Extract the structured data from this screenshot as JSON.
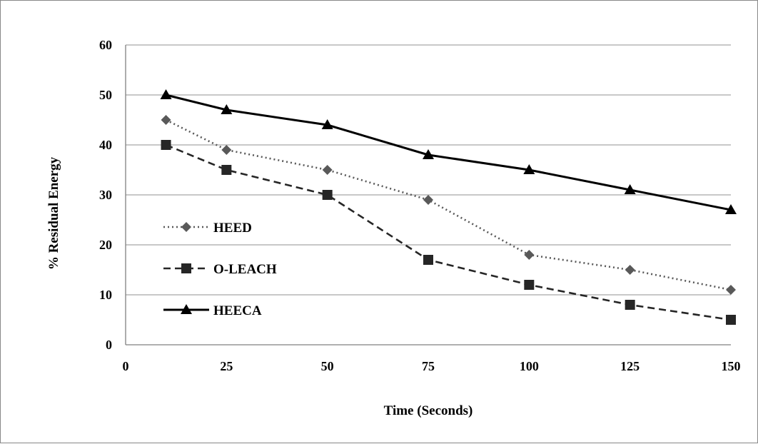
{
  "chart_data": {
    "type": "line",
    "title": "",
    "xlabel": "Time (Seconds)",
    "ylabel": "% Residual Energy",
    "x_ticks": [
      0,
      25,
      50,
      75,
      100,
      125,
      150
    ],
    "y_ticks": [
      0,
      10,
      20,
      30,
      40,
      50,
      60
    ],
    "xlim": [
      0,
      150
    ],
    "ylim": [
      0,
      60
    ],
    "grid": "horizontal",
    "legend_position": "left-middle",
    "x": [
      10,
      25,
      50,
      75,
      100,
      125,
      150
    ],
    "series": [
      {
        "name": "HEED",
        "values": [
          45,
          39,
          35,
          29,
          18,
          15,
          11
        ],
        "color": "#595959",
        "line_style": "dotted",
        "marker": "diamond"
      },
      {
        "name": "O-LEACH",
        "values": [
          40,
          35,
          30,
          17,
          12,
          8,
          5
        ],
        "color": "#262626",
        "line_style": "dashed",
        "marker": "square"
      },
      {
        "name": "HEECA",
        "values": [
          50,
          47,
          44,
          38,
          35,
          31,
          27
        ],
        "color": "#000000",
        "line_style": "solid",
        "marker": "triangle"
      }
    ]
  },
  "colors": {
    "gridline": "#a6a6a6",
    "axis": "#808080",
    "frame": "#888888"
  }
}
